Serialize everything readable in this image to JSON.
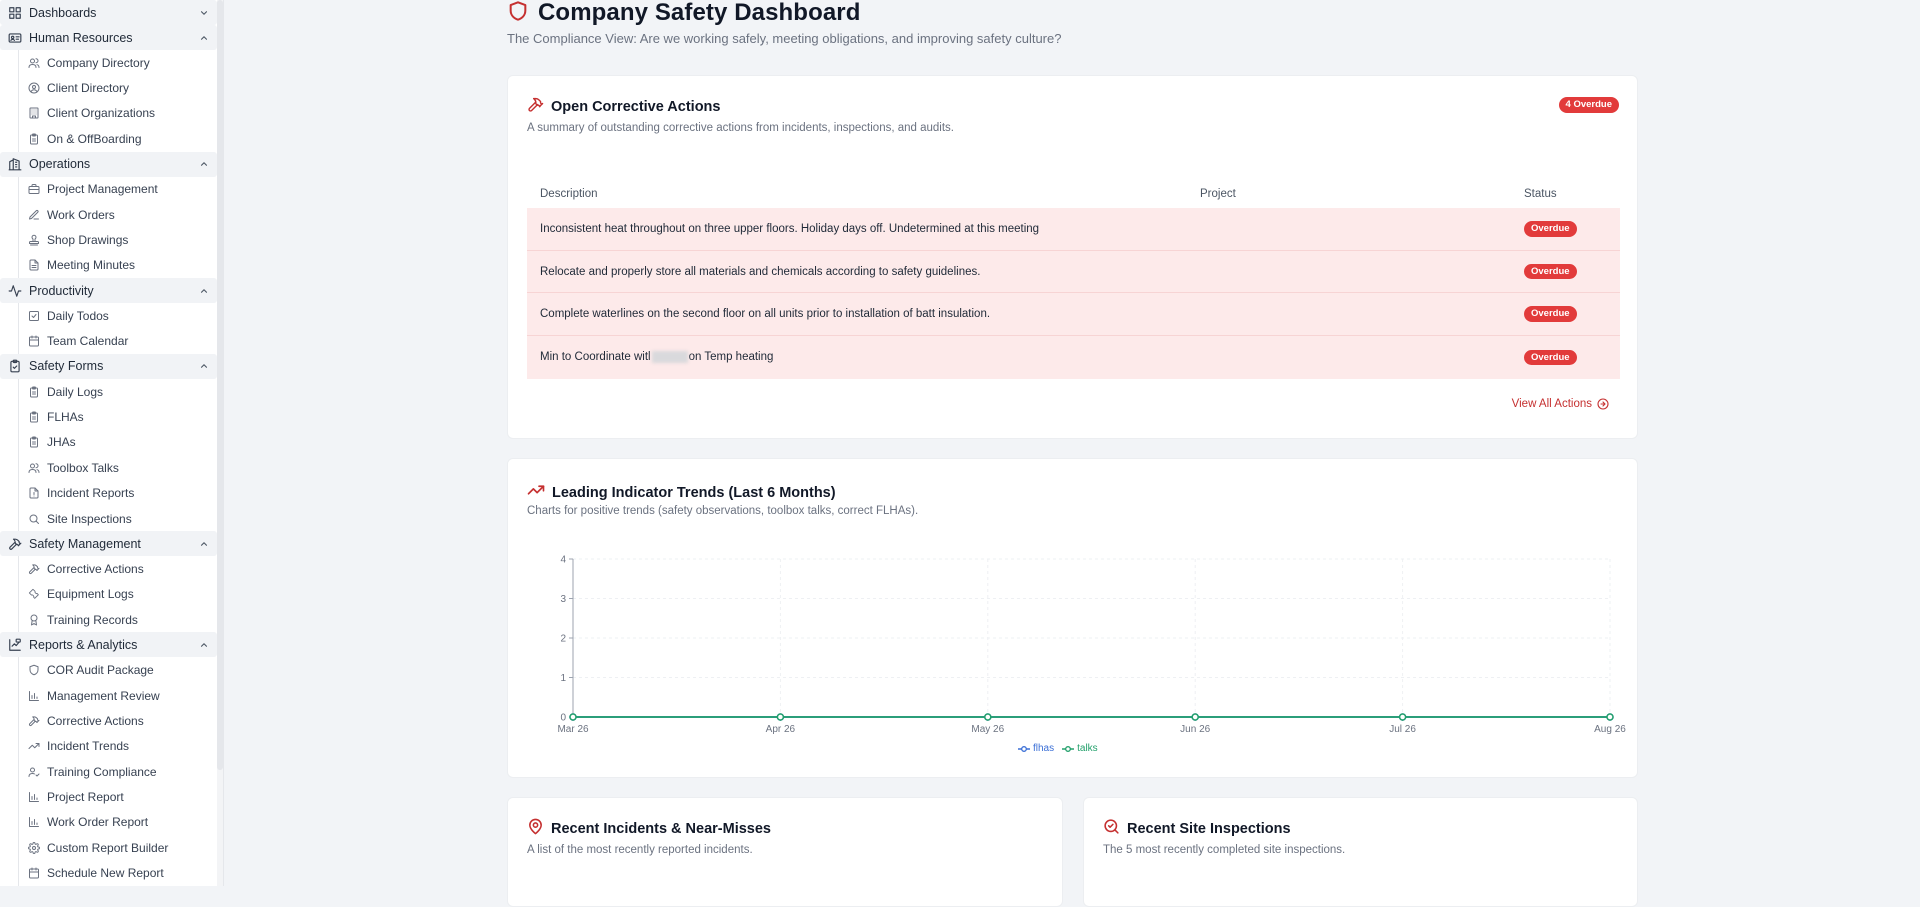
{
  "sidebar": {
    "groups": [
      {
        "label": "Dashboards",
        "icon": "grid-icon",
        "expanded": false,
        "items": []
      },
      {
        "label": "Human Resources",
        "icon": "id-card-icon",
        "expanded": true,
        "items": [
          {
            "label": "Company Directory",
            "icon": "users-icon"
          },
          {
            "label": "Client Directory",
            "icon": "user-circle-icon"
          },
          {
            "label": "Client Organizations",
            "icon": "building-icon"
          },
          {
            "label": "On & OffBoarding",
            "icon": "clipboard-icon"
          }
        ]
      },
      {
        "label": "Operations",
        "icon": "buildings-icon",
        "expanded": true,
        "items": [
          {
            "label": "Project Management",
            "icon": "briefcase-icon"
          },
          {
            "label": "Work Orders",
            "icon": "edit-icon"
          },
          {
            "label": "Shop Drawings",
            "icon": "stamp-icon"
          },
          {
            "label": "Meeting Minutes",
            "icon": "file-icon"
          }
        ]
      },
      {
        "label": "Productivity",
        "icon": "activity-icon",
        "expanded": true,
        "items": [
          {
            "label": "Daily Todos",
            "icon": "check-square-icon"
          },
          {
            "label": "Team Calendar",
            "icon": "calendar-icon"
          }
        ]
      },
      {
        "label": "Safety Forms",
        "icon": "clipboard-check-icon",
        "expanded": true,
        "items": [
          {
            "label": "Daily Logs",
            "icon": "clipboard-icon"
          },
          {
            "label": "FLHAs",
            "icon": "clipboard-icon"
          },
          {
            "label": "JHAs",
            "icon": "clipboard-icon"
          },
          {
            "label": "Toolbox Talks",
            "icon": "users-icon"
          },
          {
            "label": "Incident Reports",
            "icon": "file-alert-icon"
          },
          {
            "label": "Site Inspections",
            "icon": "search-icon"
          }
        ]
      },
      {
        "label": "Safety Management",
        "icon": "hammer-icon",
        "expanded": true,
        "items": [
          {
            "label": "Corrective Actions",
            "icon": "hammer-icon"
          },
          {
            "label": "Equipment Logs",
            "icon": "wrench-icon"
          },
          {
            "label": "Training Records",
            "icon": "award-icon"
          }
        ]
      },
      {
        "label": "Reports & Analytics",
        "icon": "report-icon",
        "expanded": true,
        "items": [
          {
            "label": "COR Audit Package",
            "icon": "shield-icon"
          },
          {
            "label": "Management Review",
            "icon": "bar-chart-icon"
          },
          {
            "label": "Corrective Actions",
            "icon": "hammer-icon"
          },
          {
            "label": "Incident Trends",
            "icon": "trending-up-icon"
          },
          {
            "label": "Training Compliance",
            "icon": "user-check-icon"
          },
          {
            "label": "Project Report",
            "icon": "bar-chart-icon"
          },
          {
            "label": "Work Order Report",
            "icon": "bar-chart-icon"
          },
          {
            "label": "Custom Report Builder",
            "icon": "gear-icon"
          },
          {
            "label": "Schedule New Report",
            "icon": "calendar-icon"
          }
        ]
      }
    ]
  },
  "page": {
    "title": "Company Safety Dashboard",
    "subtitle": "The Compliance View: Are we working safely, meeting obligations, and improving safety culture?"
  },
  "corrective": {
    "title": "Open Corrective Actions",
    "description": "A summary of outstanding corrective actions from incidents, inspections, and audits.",
    "badge": "4 Overdue",
    "columns": [
      "Description",
      "Project",
      "Status"
    ],
    "rows": [
      {
        "description": "Inconsistent heat throughout on three upper floors. Holiday days off. Undetermined at this meeting",
        "project": "",
        "status": "Overdue"
      },
      {
        "description": "Relocate and properly store all materials and chemicals according to safety guidelines.",
        "project": "",
        "status": "Overdue"
      },
      {
        "description": "Complete waterlines on the second floor on all units prior to installation of batt insulation.",
        "project": "",
        "status": "Overdue"
      },
      {
        "description_pre": "Min to Coordinate witl",
        "description_post": "on Temp heating",
        "project": "",
        "status": "Overdue"
      }
    ],
    "view_all": "View All Actions"
  },
  "trends": {
    "title": "Leading Indicator Trends (Last 6 Months)",
    "description": "Charts for positive trends (safety observations, toolbox talks, correct FLHAs)."
  },
  "chart_data": {
    "type": "line",
    "x": [
      "Mar 26",
      "Apr 26",
      "May 26",
      "Jun 26",
      "Jul 26",
      "Aug 26"
    ],
    "series": [
      {
        "name": "flhas",
        "values": [
          0,
          0,
          0,
          0,
          0,
          0
        ],
        "color": "#3b6fd6"
      },
      {
        "name": "talks",
        "values": [
          0,
          0,
          0,
          0,
          0,
          0
        ],
        "color": "#22a06b"
      }
    ],
    "ylim": [
      0,
      4
    ],
    "yticks": [
      0,
      1,
      2,
      3,
      4
    ],
    "grid": true,
    "legend": "bottom-center"
  },
  "incidents": {
    "title": "Recent Incidents & Near-Misses",
    "description": "A list of the most recently reported incidents."
  },
  "inspections": {
    "title": "Recent Site Inspections",
    "description": "The 5 most recently completed site inspections."
  },
  "colors": {
    "accent": "#c53030",
    "overdue": "#e23b3b",
    "row_bg": "#fdeaea"
  }
}
